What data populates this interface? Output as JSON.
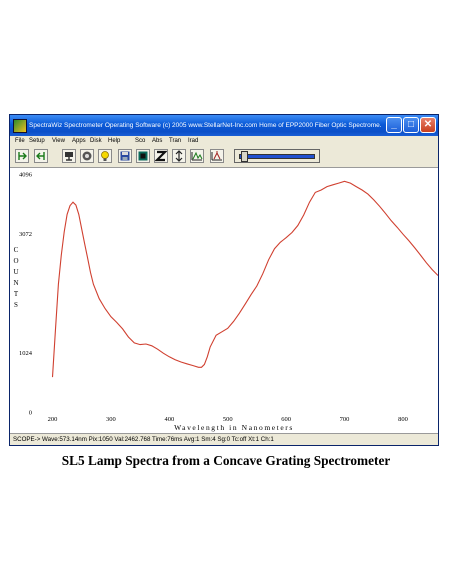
{
  "window": {
    "title": "SpectraWiz  Spectrometer Operating Software (c) 2005  www.StellarNet-Inc.com  Home of EPP2000 Fiber Optic Spectrome...",
    "controls": {
      "minimize": "_",
      "maximize": "□",
      "close": "✕"
    }
  },
  "menu": [
    "File",
    "Setup",
    "View",
    "Apps",
    "Disk",
    "Help",
    "Sco",
    "Abs",
    "Tran",
    "Irad"
  ],
  "toolbar": {
    "icons": [
      "cursor-left-icon",
      "cursor-right-icon",
      "scope-icon",
      "target-icon",
      "lightbulb-icon",
      "save-disk-icon",
      "dark-scan-icon",
      "zoom-icon",
      "reference-icon",
      "peak-icon",
      "autoscale-icon"
    ],
    "slider_value": 0.05
  },
  "chart_data": {
    "type": "line",
    "xlabel": "Wavelength in Nanometers",
    "ylabel": "COUNTS",
    "ylabel_letters": [
      "C",
      "O",
      "U",
      "N",
      "T",
      "S"
    ],
    "xlim": [
      182,
      860
    ],
    "ylim": [
      0,
      4096
    ],
    "x_ticks": [
      {
        "value": 200,
        "label": "200"
      },
      {
        "value": 300,
        "label": "300"
      },
      {
        "value": 400,
        "label": "400"
      },
      {
        "value": 500,
        "label": "500"
      },
      {
        "value": 600,
        "label": "600"
      },
      {
        "value": 700,
        "label": "700"
      },
      {
        "value": 800,
        "label": "800"
      }
    ],
    "y_ticks": [
      {
        "value": 0,
        "label": "0"
      },
      {
        "value": 1024,
        "label": "1024"
      },
      {
        "value": 3072,
        "label": "3072"
      },
      {
        "value": 4096,
        "label": "4096"
      }
    ],
    "grid": false,
    "line_color": "#d04030",
    "x": [
      200,
      205,
      210,
      215,
      220,
      225,
      230,
      235,
      240,
      245,
      250,
      255,
      260,
      265,
      270,
      280,
      290,
      300,
      310,
      320,
      330,
      340,
      350,
      360,
      370,
      380,
      390,
      400,
      410,
      420,
      430,
      440,
      450,
      455,
      460,
      465,
      470,
      480,
      490,
      500,
      510,
      520,
      530,
      540,
      550,
      560,
      570,
      580,
      590,
      595,
      600,
      610,
      620,
      630,
      640,
      650,
      660,
      670,
      680,
      690,
      700,
      710,
      720,
      730,
      740,
      750,
      760,
      770,
      780,
      790,
      800,
      810,
      820,
      830,
      840,
      850,
      860
    ],
    "y": [
      600,
      1400,
      2200,
      2700,
      3100,
      3400,
      3550,
      3610,
      3560,
      3400,
      3150,
      2900,
      2650,
      2400,
      2200,
      1950,
      1780,
      1640,
      1540,
      1430,
      1290,
      1190,
      1160,
      1170,
      1140,
      1080,
      1010,
      950,
      900,
      860,
      830,
      800,
      770,
      770,
      820,
      950,
      1120,
      1320,
      1380,
      1440,
      1560,
      1700,
      1860,
      2020,
      2170,
      2380,
      2620,
      2810,
      2920,
      2960,
      3000,
      3090,
      3210,
      3390,
      3610,
      3780,
      3820,
      3880,
      3910,
      3940,
      3970,
      3940,
      3880,
      3820,
      3750,
      3650,
      3540,
      3420,
      3290,
      3180,
      3060,
      2950,
      2830,
      2700,
      2570,
      2450,
      2350
    ]
  },
  "status": "SCOPE->  Wave:573.14nm  Pix:1050  Val:2462.768 Time:76ms  Avg:1  Sm:4  Sg:0  Tc:off  Xt:1  Ch:1",
  "caption": "SL5 Lamp Spectra from a Concave Grating Spectrometer"
}
